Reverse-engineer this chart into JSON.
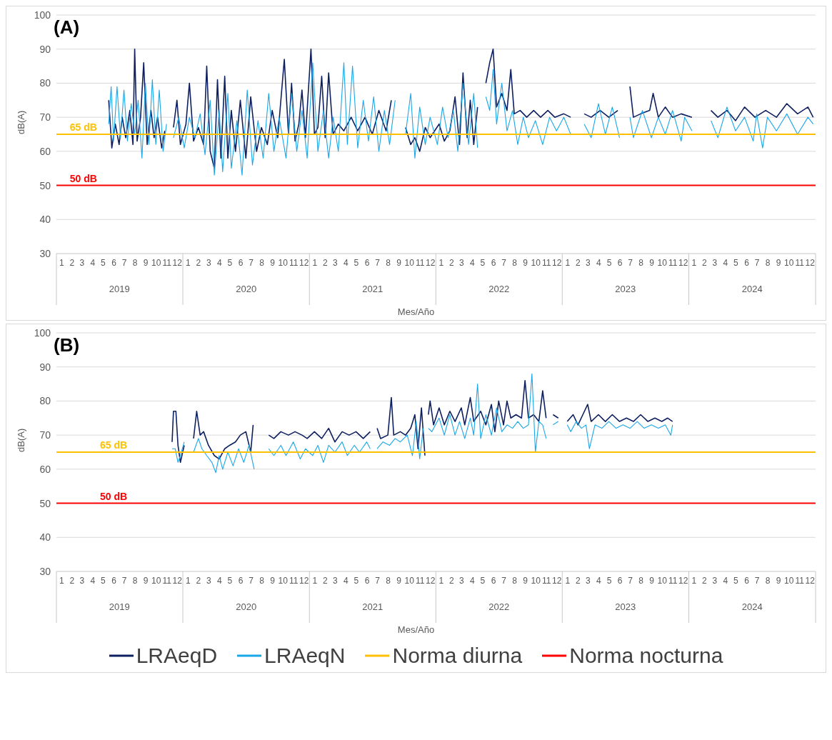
{
  "chart_data": [
    {
      "type": "line",
      "title": "(A)",
      "xlabel": "Mes/Año",
      "ylabel": "dB(A)",
      "ylim": [
        30,
        100
      ],
      "yticks": [
        30,
        40,
        50,
        60,
        70,
        80,
        90,
        100
      ],
      "grid": "y",
      "legend": false,
      "marker": "none",
      "xlim": [
        "2019-01-01",
        "2025-01-01"
      ],
      "xticks": [
        {
          "value": "2019-01-16",
          "label": "1"
        },
        {
          "value": "2019-02-15",
          "label": "2"
        },
        {
          "value": "2019-03-16",
          "label": "3"
        },
        {
          "value": "2019-04-16",
          "label": "4"
        },
        {
          "value": "2019-05-16",
          "label": "5"
        },
        {
          "value": "2019-06-16",
          "label": "6"
        },
        {
          "value": "2019-07-16",
          "label": "7"
        },
        {
          "value": "2019-08-16",
          "label": "8"
        },
        {
          "value": "2019-09-16",
          "label": "9"
        },
        {
          "value": "2019-10-16",
          "label": "10"
        },
        {
          "value": "2019-11-16",
          "label": "11"
        },
        {
          "value": "2019-12-16",
          "label": "12"
        },
        {
          "value": "2020-01-16",
          "label": "1"
        },
        {
          "value": "2020-02-15",
          "label": "2"
        },
        {
          "value": "2020-03-16",
          "label": "3"
        },
        {
          "value": "2020-04-16",
          "label": "4"
        },
        {
          "value": "2020-05-16",
          "label": "5"
        },
        {
          "value": "2020-06-16",
          "label": "6"
        },
        {
          "value": "2020-07-16",
          "label": "7"
        },
        {
          "value": "2020-08-16",
          "label": "8"
        },
        {
          "value": "2020-09-16",
          "label": "9"
        },
        {
          "value": "2020-10-16",
          "label": "10"
        },
        {
          "value": "2020-11-16",
          "label": "11"
        },
        {
          "value": "2020-12-16",
          "label": "12"
        },
        {
          "value": "2021-01-16",
          "label": "1"
        },
        {
          "value": "2021-02-15",
          "label": "2"
        },
        {
          "value": "2021-03-16",
          "label": "3"
        },
        {
          "value": "2021-04-16",
          "label": "4"
        },
        {
          "value": "2021-05-16",
          "label": "5"
        },
        {
          "value": "2021-06-16",
          "label": "6"
        },
        {
          "value": "2021-07-16",
          "label": "7"
        },
        {
          "value": "2021-08-16",
          "label": "8"
        },
        {
          "value": "2021-09-16",
          "label": "9"
        },
        {
          "value": "2021-10-16",
          "label": "10"
        },
        {
          "value": "2021-11-16",
          "label": "11"
        },
        {
          "value": "2021-12-16",
          "label": "12"
        },
        {
          "value": "2022-01-16",
          "label": "1"
        },
        {
          "value": "2022-02-15",
          "label": "2"
        },
        {
          "value": "2022-03-16",
          "label": "3"
        },
        {
          "value": "2022-04-16",
          "label": "4"
        },
        {
          "value": "2022-05-16",
          "label": "5"
        },
        {
          "value": "2022-06-16",
          "label": "6"
        },
        {
          "value": "2022-07-16",
          "label": "7"
        },
        {
          "value": "2022-08-16",
          "label": "8"
        },
        {
          "value": "2022-09-16",
          "label": "9"
        },
        {
          "value": "2022-10-16",
          "label": "10"
        },
        {
          "value": "2022-11-16",
          "label": "11"
        },
        {
          "value": "2022-12-16",
          "label": "12"
        },
        {
          "value": "2023-01-16",
          "label": "1"
        },
        {
          "value": "2023-02-15",
          "label": "2"
        },
        {
          "value": "2023-03-16",
          "label": "3"
        },
        {
          "value": "2023-04-16",
          "label": "4"
        },
        {
          "value": "2023-05-16",
          "label": "5"
        },
        {
          "value": "2023-06-16",
          "label": "6"
        },
        {
          "value": "2023-07-16",
          "label": "7"
        },
        {
          "value": "2023-08-16",
          "label": "8"
        },
        {
          "value": "2023-09-16",
          "label": "9"
        },
        {
          "value": "2023-10-16",
          "label": "10"
        },
        {
          "value": "2023-11-16",
          "label": "11"
        },
        {
          "value": "2023-12-16",
          "label": "12"
        },
        {
          "value": "2024-01-16",
          "label": "1"
        },
        {
          "value": "2024-02-15",
          "label": "2"
        },
        {
          "value": "2024-03-16",
          "label": "3"
        },
        {
          "value": "2024-04-16",
          "label": "4"
        },
        {
          "value": "2024-05-16",
          "label": "5"
        },
        {
          "value": "2024-06-16",
          "label": "6"
        },
        {
          "value": "2024-07-16",
          "label": "7"
        },
        {
          "value": "2024-08-16",
          "label": "8"
        },
        {
          "value": "2024-09-16",
          "label": "9"
        },
        {
          "value": "2024-10-16",
          "label": "10"
        },
        {
          "value": "2024-11-16",
          "label": "11"
        },
        {
          "value": "2024-12-16",
          "label": "12"
        }
      ],
      "x2lim": [
        "2019-01-01",
        "2025-01-01"
      ],
      "x2ticks": [
        {
          "value": "2019-07-02",
          "label": "2019"
        },
        {
          "value": "2020-07-02",
          "label": "2020"
        },
        {
          "value": "2021-07-02",
          "label": "2021"
        },
        {
          "value": "2022-07-02",
          "label": "2022"
        },
        {
          "value": "2023-07-02",
          "label": "2023"
        },
        {
          "value": "2024-07-02",
          "label": "2024"
        }
      ],
      "annotations": [
        {
          "text": "65 dB",
          "x": "2019-03-20",
          "y": 65
        },
        {
          "text": "50 dB",
          "x": "2019-03-20",
          "y": 50
        }
      ],
      "series": [
        {
          "color": "#0f2060",
          "x": [
            "2019-06-01",
            "2019-06-10",
            "2019-06-20",
            "2019-07-01",
            "2019-07-10",
            "2019-07-20",
            "2019-08-01",
            "2019-08-10",
            "2019-08-15",
            "2019-08-22",
            "2019-09-01",
            "2019-09-10",
            "2019-09-20",
            "2019-10-01",
            "2019-10-10",
            "2019-10-20",
            "2019-11-01",
            "2019-11-10",
            "2019-11-20",
            "2019-12-05",
            "2019-12-15",
            "2019-12-25",
            "2020-01-10",
            "2020-01-20",
            "2020-02-01",
            "2020-02-15",
            "2020-03-01",
            "2020-03-10",
            "2020-03-20",
            "2020-04-01",
            "2020-04-10",
            "2020-04-20",
            "2020-05-01",
            "2020-05-10",
            "2020-05-20",
            "2020-06-01",
            "2020-06-15",
            "2020-07-01",
            "2020-07-15",
            "2020-08-01",
            "2020-08-15",
            "2020-09-01",
            "2020-09-15",
            "2020-10-01",
            "2020-10-20",
            "2020-11-01",
            "2020-11-10",
            "2020-11-20",
            "2020-12-01",
            "2020-12-10",
            "2020-12-20",
            "2021-01-05",
            "2021-01-15",
            "2021-01-25",
            "2021-02-05",
            "2021-02-15",
            "2021-02-25",
            "2021-03-10",
            "2021-03-25",
            "2021-04-10",
            "2021-05-01",
            "2021-05-20",
            "2021-06-10",
            "2021-07-01",
            "2021-07-20",
            "2021-08-10",
            "2021-08-25",
            "2021-09-20",
            "2021-10-05",
            "2021-10-20",
            "2021-11-01",
            "2021-11-15",
            "2021-12-01",
            "2021-12-15",
            "2022-01-10",
            "2022-01-25",
            "2022-02-10",
            "2022-02-25",
            "2022-03-10",
            "2022-03-20",
            "2022-04-01",
            "2022-04-10",
            "2022-04-20",
            "2022-05-01",
            "2022-05-10",
            "2022-05-25",
            "2022-06-05",
            "2022-06-15",
            "2022-06-25",
            "2022-07-10",
            "2022-07-25",
            "2022-08-05",
            "2022-08-15",
            "2022-09-01",
            "2022-09-20",
            "2022-10-10",
            "2022-10-30",
            "2022-11-20",
            "2022-12-10",
            "2023-01-05",
            "2023-01-25",
            "2023-02-20",
            "2023-03-05",
            "2023-03-25",
            "2023-04-20",
            "2023-05-15",
            "2023-06-10",
            "2023-07-01",
            "2023-07-15",
            "2023-07-25",
            "2023-08-15",
            "2023-09-10",
            "2023-09-20",
            "2023-10-05",
            "2023-10-25",
            "2023-11-15",
            "2023-12-10",
            "2024-01-10",
            "2024-02-20",
            "2024-03-05",
            "2024-03-25",
            "2024-04-20",
            "2024-05-15",
            "2024-06-10",
            "2024-07-10",
            "2024-08-10",
            "2024-09-10",
            "2024-10-10",
            "2024-11-10",
            "2024-12-10",
            "2024-12-25"
          ],
          "values": [
            75,
            61,
            68,
            62,
            70,
            64,
            72,
            62,
            90,
            63,
            70,
            86,
            62,
            72,
            64,
            70,
            61,
            66,
            null,
            67,
            75,
            62,
            68,
            80,
            63,
            67,
            62,
            85,
            60,
            55,
            81,
            58,
            82,
            58,
            72,
            60,
            75,
            58,
            76,
            60,
            67,
            62,
            72,
            64,
            87,
            65,
            80,
            63,
            68,
            78,
            64,
            90,
            65,
            67,
            82,
            64,
            83,
            65,
            68,
            66,
            70,
            66,
            70,
            65,
            72,
            66,
            75,
            null,
            67,
            62,
            64,
            60,
            67,
            64,
            68,
            63,
            66,
            76,
            62,
            83,
            64,
            75,
            62,
            73,
            null,
            80,
            86,
            90,
            73,
            77,
            72,
            84,
            71,
            72,
            70,
            72,
            70,
            72,
            70,
            71,
            70,
            null,
            71,
            70,
            72,
            70,
            72,
            null,
            79,
            70,
            71,
            72,
            77,
            70,
            73,
            70,
            71,
            70,
            null,
            72,
            70,
            72,
            69,
            73,
            70,
            72,
            70,
            74,
            71,
            73,
            70
          ]
        },
        {
          "color": "#1aa7e8",
          "x": [
            "2019-06-01",
            "2019-06-08",
            "2019-06-15",
            "2019-06-25",
            "2019-07-05",
            "2019-07-15",
            "2019-07-25",
            "2019-08-05",
            "2019-08-15",
            "2019-08-25",
            "2019-09-05",
            "2019-09-15",
            "2019-09-25",
            "2019-10-05",
            "2019-10-15",
            "2019-10-25",
            "2019-11-05",
            "2019-11-15",
            "2019-11-20",
            "2019-12-05",
            "2019-12-20",
            "2020-01-05",
            "2020-01-20",
            "2020-02-05",
            "2020-02-20",
            "2020-03-05",
            "2020-03-20",
            "2020-04-01",
            "2020-04-15",
            "2020-04-25",
            "2020-05-10",
            "2020-05-20",
            "2020-06-05",
            "2020-06-20",
            "2020-07-05",
            "2020-07-20",
            "2020-08-05",
            "2020-08-20",
            "2020-09-05",
            "2020-09-20",
            "2020-10-05",
            "2020-10-25",
            "2020-11-10",
            "2020-11-25",
            "2020-12-10",
            "2020-12-25",
            "2021-01-10",
            "2021-01-25",
            "2021-02-10",
            "2021-02-25",
            "2021-03-10",
            "2021-03-25",
            "2021-04-10",
            "2021-04-20",
            "2021-05-05",
            "2021-05-20",
            "2021-06-05",
            "2021-06-20",
            "2021-07-05",
            "2021-07-20",
            "2021-08-05",
            "2021-08-20",
            "2021-09-05",
            "2021-09-20",
            "2021-10-05",
            "2021-10-20",
            "2021-11-01",
            "2021-11-15",
            "2021-12-01",
            "2021-12-15",
            "2022-01-05",
            "2022-01-20",
            "2022-02-05",
            "2022-02-20",
            "2022-03-05",
            "2022-03-20",
            "2022-04-05",
            "2022-04-20",
            "2022-05-01",
            "2022-05-10",
            "2022-05-25",
            "2022-06-05",
            "2022-06-15",
            "2022-06-25",
            "2022-07-10",
            "2022-07-25",
            "2022-08-10",
            "2022-08-25",
            "2022-09-10",
            "2022-09-25",
            "2022-10-15",
            "2022-11-05",
            "2022-11-25",
            "2022-12-15",
            "2023-01-05",
            "2023-01-25",
            "2023-02-20",
            "2023-03-05",
            "2023-03-25",
            "2023-04-15",
            "2023-05-05",
            "2023-05-25",
            "2023-06-15",
            "2023-07-01",
            "2023-07-15",
            "2023-07-25",
            "2023-08-20",
            "2023-09-15",
            "2023-10-05",
            "2023-10-25",
            "2023-11-15",
            "2023-12-10",
            "2023-12-20",
            "2024-01-10",
            "2024-02-20",
            "2024-03-05",
            "2024-03-25",
            "2024-04-20",
            "2024-05-15",
            "2024-06-10",
            "2024-07-05",
            "2024-07-15",
            "2024-08-01",
            "2024-08-15",
            "2024-09-10",
            "2024-10-10",
            "2024-11-10",
            "2024-12-10",
            "2024-12-25"
          ],
          "values": [
            68,
            79,
            63,
            79,
            64,
            78,
            63,
            74,
            65,
            75,
            58,
            80,
            62,
            81,
            62,
            78,
            60,
            68,
            null,
            64,
            70,
            61,
            70,
            64,
            71,
            59,
            75,
            53,
            72,
            54,
            77,
            55,
            69,
            53,
            78,
            56,
            69,
            58,
            77,
            60,
            70,
            58,
            77,
            60,
            72,
            58,
            86,
            60,
            72,
            58,
            70,
            60,
            86,
            62,
            85,
            61,
            75,
            63,
            76,
            60,
            72,
            62,
            75,
            null,
            65,
            77,
            58,
            73,
            62,
            70,
            62,
            73,
            64,
            72,
            60,
            80,
            62,
            77,
            61,
            null,
            76,
            72,
            84,
            68,
            80,
            66,
            72,
            62,
            70,
            64,
            69,
            62,
            70,
            66,
            70,
            65,
            null,
            68,
            64,
            74,
            65,
            73,
            64,
            null,
            70,
            64,
            72,
            64,
            70,
            65,
            72,
            63,
            70,
            66,
            null,
            69,
            64,
            73,
            66,
            70,
            63,
            71,
            61,
            70,
            66,
            71,
            65,
            70,
            68
          ]
        },
        {
          "color": "#ffc000",
          "x": [
            "2019-01-01",
            "2025-01-01"
          ],
          "values": [
            65,
            65
          ]
        },
        {
          "color": "#ff0000",
          "x": [
            "2019-01-01",
            "2025-01-01"
          ],
          "values": [
            50,
            50
          ]
        }
      ]
    },
    {
      "type": "line",
      "title": "(B)",
      "xlabel": "Mes/Año",
      "ylabel": "dB(A)",
      "ylim": [
        30,
        100
      ],
      "yticks": [
        30,
        40,
        50,
        60,
        70,
        80,
        90,
        100
      ],
      "grid": "y",
      "legend": "bottom",
      "marker": "none",
      "xlim": [
        "2019-01-01",
        "2025-01-01"
      ],
      "xticks": [
        {
          "value": "2019-01-16",
          "label": "1"
        },
        {
          "value": "2019-02-15",
          "label": "2"
        },
        {
          "value": "2019-03-16",
          "label": "3"
        },
        {
          "value": "2019-04-16",
          "label": "4"
        },
        {
          "value": "2019-05-16",
          "label": "5"
        },
        {
          "value": "2019-06-16",
          "label": "6"
        },
        {
          "value": "2019-07-16",
          "label": "7"
        },
        {
          "value": "2019-08-16",
          "label": "8"
        },
        {
          "value": "2019-09-16",
          "label": "9"
        },
        {
          "value": "2019-10-16",
          "label": "10"
        },
        {
          "value": "2019-11-16",
          "label": "11"
        },
        {
          "value": "2019-12-16",
          "label": "12"
        },
        {
          "value": "2020-01-16",
          "label": "1"
        },
        {
          "value": "2020-02-15",
          "label": "2"
        },
        {
          "value": "2020-03-16",
          "label": "3"
        },
        {
          "value": "2020-04-16",
          "label": "4"
        },
        {
          "value": "2020-05-16",
          "label": "5"
        },
        {
          "value": "2020-06-16",
          "label": "6"
        },
        {
          "value": "2020-07-16",
          "label": "7"
        },
        {
          "value": "2020-08-16",
          "label": "8"
        },
        {
          "value": "2020-09-16",
          "label": "9"
        },
        {
          "value": "2020-10-16",
          "label": "10"
        },
        {
          "value": "2020-11-16",
          "label": "11"
        },
        {
          "value": "2020-12-16",
          "label": "12"
        },
        {
          "value": "2021-01-16",
          "label": "1"
        },
        {
          "value": "2021-02-15",
          "label": "2"
        },
        {
          "value": "2021-03-16",
          "label": "3"
        },
        {
          "value": "2021-04-16",
          "label": "4"
        },
        {
          "value": "2021-05-16",
          "label": "5"
        },
        {
          "value": "2021-06-16",
          "label": "6"
        },
        {
          "value": "2021-07-16",
          "label": "7"
        },
        {
          "value": "2021-08-16",
          "label": "8"
        },
        {
          "value": "2021-09-16",
          "label": "9"
        },
        {
          "value": "2021-10-16",
          "label": "10"
        },
        {
          "value": "2021-11-16",
          "label": "11"
        },
        {
          "value": "2021-12-16",
          "label": "12"
        },
        {
          "value": "2022-01-16",
          "label": "1"
        },
        {
          "value": "2022-02-15",
          "label": "2"
        },
        {
          "value": "2022-03-16",
          "label": "3"
        },
        {
          "value": "2022-04-16",
          "label": "4"
        },
        {
          "value": "2022-05-16",
          "label": "5"
        },
        {
          "value": "2022-06-16",
          "label": "6"
        },
        {
          "value": "2022-07-16",
          "label": "7"
        },
        {
          "value": "2022-08-16",
          "label": "8"
        },
        {
          "value": "2022-09-16",
          "label": "9"
        },
        {
          "value": "2022-10-16",
          "label": "10"
        },
        {
          "value": "2022-11-16",
          "label": "11"
        },
        {
          "value": "2022-12-16",
          "label": "12"
        },
        {
          "value": "2023-01-16",
          "label": "1"
        },
        {
          "value": "2023-02-15",
          "label": "2"
        },
        {
          "value": "2023-03-16",
          "label": "3"
        },
        {
          "value": "2023-04-16",
          "label": "4"
        },
        {
          "value": "2023-05-16",
          "label": "5"
        },
        {
          "value": "2023-06-16",
          "label": "6"
        },
        {
          "value": "2023-07-16",
          "label": "7"
        },
        {
          "value": "2023-08-16",
          "label": "8"
        },
        {
          "value": "2023-09-16",
          "label": "9"
        },
        {
          "value": "2023-10-16",
          "label": "10"
        },
        {
          "value": "2023-11-16",
          "label": "11"
        },
        {
          "value": "2023-12-16",
          "label": "12"
        },
        {
          "value": "2024-01-16",
          "label": "1"
        },
        {
          "value": "2024-02-15",
          "label": "2"
        },
        {
          "value": "2024-03-16",
          "label": "3"
        },
        {
          "value": "2024-04-16",
          "label": "4"
        },
        {
          "value": "2024-05-16",
          "label": "5"
        },
        {
          "value": "2024-06-16",
          "label": "6"
        },
        {
          "value": "2024-07-16",
          "label": "7"
        },
        {
          "value": "2024-08-16",
          "label": "8"
        },
        {
          "value": "2024-09-16",
          "label": "9"
        },
        {
          "value": "2024-10-16",
          "label": "10"
        },
        {
          "value": "2024-11-16",
          "label": "11"
        },
        {
          "value": "2024-12-16",
          "label": "12"
        }
      ],
      "x2lim": [
        "2019-01-01",
        "2025-01-01"
      ],
      "x2ticks": [
        {
          "value": "2019-07-02",
          "label": "2019"
        },
        {
          "value": "2020-07-02",
          "label": "2020"
        },
        {
          "value": "2021-07-02",
          "label": "2021"
        },
        {
          "value": "2022-07-02",
          "label": "2022"
        },
        {
          "value": "2023-07-02",
          "label": "2023"
        },
        {
          "value": "2024-07-02",
          "label": "2024"
        }
      ],
      "annotations": [
        {
          "text": "65 dB",
          "x": "2019-06-15",
          "y": 65
        },
        {
          "text": "50 dB",
          "x": "2019-06-15",
          "y": 50
        }
      ],
      "series": [
        {
          "name": "LRAeqD",
          "color": "#0f2060",
          "x": [
            "2019-12-01",
            "2019-12-05",
            "2019-12-12",
            "2019-12-18",
            "2019-12-25",
            "2020-01-05",
            "2020-01-15",
            "2020-02-01",
            "2020-02-10",
            "2020-02-20",
            "2020-03-01",
            "2020-03-15",
            "2020-04-01",
            "2020-04-15",
            "2020-05-01",
            "2020-05-15",
            "2020-06-01",
            "2020-06-15",
            "2020-07-01",
            "2020-07-15",
            "2020-07-22",
            "2020-08-01",
            "2020-09-05",
            "2020-09-20",
            "2020-10-10",
            "2020-11-01",
            "2020-11-20",
            "2020-12-10",
            "2020-12-25",
            "2021-01-15",
            "2021-02-05",
            "2021-02-25",
            "2021-03-15",
            "2021-04-05",
            "2021-04-25",
            "2021-05-15",
            "2021-06-05",
            "2021-06-25",
            "2021-07-05",
            "2021-07-15",
            "2021-07-25",
            "2021-08-15",
            "2021-08-25",
            "2021-09-01",
            "2021-09-20",
            "2021-10-05",
            "2021-10-20",
            "2021-11-01",
            "2021-11-10",
            "2021-11-20",
            "2021-11-30",
            "2021-12-05",
            "2021-12-10",
            "2021-12-15",
            "2021-12-25",
            "2022-01-10",
            "2022-01-25",
            "2022-02-10",
            "2022-02-25",
            "2022-03-15",
            "2022-03-25",
            "2022-04-10",
            "2022-04-20",
            "2022-05-10",
            "2022-05-25",
            "2022-06-10",
            "2022-06-20",
            "2022-07-01",
            "2022-07-15",
            "2022-07-25",
            "2022-08-05",
            "2022-08-20",
            "2022-09-05",
            "2022-09-15",
            "2022-09-25",
            "2022-10-10",
            "2022-10-25",
            "2022-11-05",
            "2022-11-15",
            "2022-11-25",
            "2022-12-05",
            "2022-12-20",
            "2023-01-05",
            "2023-01-15",
            "2023-02-01",
            "2023-02-15",
            "2023-03-01",
            "2023-03-15",
            "2023-03-25",
            "2023-04-15",
            "2023-05-05",
            "2023-05-25",
            "2023-06-15",
            "2023-07-05",
            "2023-07-25",
            "2023-08-15",
            "2023-09-05",
            "2023-09-25",
            "2023-10-15",
            "2023-11-01",
            "2023-11-15"
          ],
          "values": [
            68,
            77,
            77,
            67,
            62,
            67,
            null,
            69,
            77,
            70,
            71,
            67,
            64,
            63,
            66,
            67,
            68,
            70,
            71,
            65,
            73,
            null,
            70,
            69,
            71,
            70,
            71,
            70,
            69,
            71,
            69,
            72,
            68,
            71,
            70,
            71,
            69,
            71,
            null,
            72,
            69,
            70,
            81,
            70,
            71,
            70,
            72,
            76,
            66,
            78,
            64,
            null,
            76,
            80,
            73,
            78,
            73,
            77,
            74,
            78,
            73,
            81,
            74,
            77,
            73,
            79,
            71,
            80,
            73,
            80,
            75,
            76,
            75,
            86,
            75,
            76,
            74,
            83,
            75,
            null,
            76,
            75,
            null,
            74,
            76,
            73,
            76,
            79,
            74,
            76,
            74,
            76,
            74,
            75,
            74,
            76,
            74,
            75,
            74,
            75,
            74
          ]
        },
        {
          "name": "LRAeqN",
          "color": "#1aa7e8",
          "x": [
            "2019-12-01",
            "2019-12-10",
            "2019-12-18",
            "2019-12-25",
            "2020-01-05",
            "2020-01-15",
            "2020-02-01",
            "2020-02-15",
            "2020-02-25",
            "2020-03-10",
            "2020-03-25",
            "2020-04-05",
            "2020-04-15",
            "2020-04-25",
            "2020-05-10",
            "2020-05-25",
            "2020-06-10",
            "2020-06-25",
            "2020-07-10",
            "2020-07-25",
            "2020-08-01",
            "2020-09-05",
            "2020-09-20",
            "2020-10-10",
            "2020-10-25",
            "2020-11-15",
            "2020-12-05",
            "2020-12-20",
            "2021-01-10",
            "2021-01-25",
            "2021-02-10",
            "2021-02-25",
            "2021-03-15",
            "2021-04-05",
            "2021-04-20",
            "2021-05-10",
            "2021-05-25",
            "2021-06-15",
            "2021-06-25",
            "2021-07-05",
            "2021-07-15",
            "2021-08-01",
            "2021-08-20",
            "2021-09-05",
            "2021-09-20",
            "2021-10-10",
            "2021-10-25",
            "2021-11-05",
            "2021-11-15",
            "2021-11-25",
            "2021-12-05",
            "2021-12-10",
            "2021-12-20",
            "2022-01-10",
            "2022-01-25",
            "2022-02-10",
            "2022-02-25",
            "2022-03-10",
            "2022-03-25",
            "2022-04-10",
            "2022-04-20",
            "2022-05-01",
            "2022-05-10",
            "2022-05-25",
            "2022-06-10",
            "2022-06-25",
            "2022-07-10",
            "2022-07-25",
            "2022-08-10",
            "2022-08-25",
            "2022-09-10",
            "2022-09-25",
            "2022-10-05",
            "2022-10-15",
            "2022-10-25",
            "2022-11-05",
            "2022-11-15",
            "2022-11-25",
            "2022-12-05",
            "2022-12-20",
            "2023-01-05",
            "2023-01-15",
            "2023-01-25",
            "2023-02-10",
            "2023-02-25",
            "2023-03-10",
            "2023-03-20",
            "2023-04-05",
            "2023-04-25",
            "2023-05-15",
            "2023-06-05",
            "2023-06-25",
            "2023-07-15",
            "2023-08-05",
            "2023-08-25",
            "2023-09-15",
            "2023-10-05",
            "2023-10-25",
            "2023-11-10",
            "2023-11-15"
          ],
          "values": [
            66,
            66,
            62,
            64,
            68,
            null,
            65,
            69,
            66,
            64,
            62,
            59,
            64,
            60,
            65,
            61,
            66,
            62,
            67,
            60,
            null,
            66,
            64,
            67,
            64,
            68,
            63,
            66,
            64,
            67,
            62,
            67,
            65,
            68,
            64,
            67,
            65,
            68,
            66,
            null,
            66,
            68,
            67,
            69,
            68,
            70,
            64,
            74,
            63,
            72,
            null,
            72,
            71,
            75,
            70,
            76,
            70,
            74,
            69,
            75,
            70,
            85,
            69,
            76,
            70,
            78,
            71,
            73,
            72,
            74,
            72,
            73,
            88,
            65,
            74,
            73,
            69,
            null,
            73,
            74,
            null,
            73,
            71,
            74,
            72,
            73,
            66,
            73,
            72,
            74,
            72,
            73,
            72,
            74,
            72,
            73,
            72,
            73,
            70,
            73
          ]
        },
        {
          "name": "Norma diurna",
          "color": "#ffc000",
          "x": [
            "2019-01-01",
            "2025-01-01"
          ],
          "values": [
            65,
            65
          ]
        },
        {
          "name": "Norma nocturna",
          "color": "#ff0000",
          "x": [
            "2019-01-01",
            "2025-01-01"
          ],
          "values": [
            50,
            50
          ]
        }
      ]
    }
  ]
}
